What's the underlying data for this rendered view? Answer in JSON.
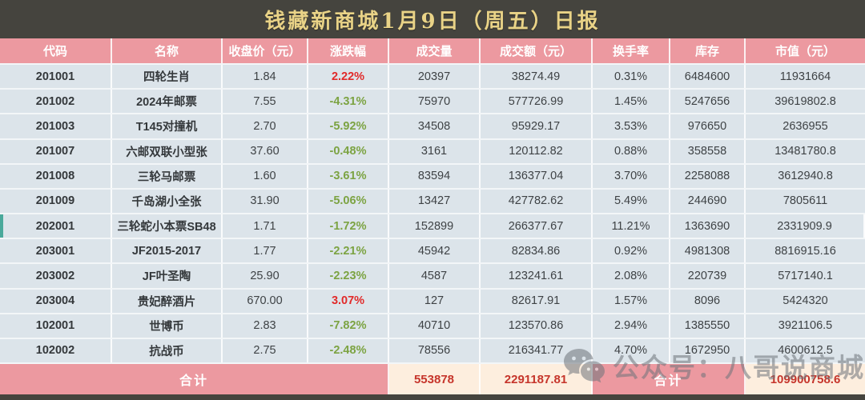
{
  "title": "钱藏新商城1月9日（周五）日报",
  "colors": {
    "title_gold": "#e9d387",
    "header_pink": "#ec99a0",
    "row_bg": "#dce4ea",
    "up_red": "#e12a2a",
    "down_green": "#7ca342",
    "footer_cream": "#fdeede",
    "footer_red": "#c6352b",
    "highlight_teal": "#4aa99b",
    "frame_dark": "#45443e"
  },
  "table": {
    "columns": [
      "代码",
      "名称",
      "收盘价（元）",
      "涨跌幅",
      "成交量",
      "成交额（元）",
      "换手率",
      "库存",
      "市值（元）"
    ],
    "rows": [
      {
        "code": "201001",
        "name": "四轮生肖",
        "close": "1.84",
        "change": "2.22%",
        "direction": "up",
        "volume": "20397",
        "turnover": "38274.49",
        "rate": "0.31%",
        "inventory": "6484600",
        "market_value": "11931664",
        "highlighted": false
      },
      {
        "code": "201002",
        "name": "2024年邮票",
        "close": "7.55",
        "change": "-4.31%",
        "direction": "down",
        "volume": "75970",
        "turnover": "577726.99",
        "rate": "1.45%",
        "inventory": "5247656",
        "market_value": "39619802.8",
        "highlighted": false
      },
      {
        "code": "201003",
        "name": "T145对撞机",
        "close": "2.70",
        "change": "-5.92%",
        "direction": "down",
        "volume": "34508",
        "turnover": "95929.17",
        "rate": "3.53%",
        "inventory": "976650",
        "market_value": "2636955",
        "highlighted": false
      },
      {
        "code": "201007",
        "name": "六邮双联小型张",
        "close": "37.60",
        "change": "-0.48%",
        "direction": "down",
        "volume": "3161",
        "turnover": "120112.82",
        "rate": "0.88%",
        "inventory": "358558",
        "market_value": "13481780.8",
        "highlighted": false
      },
      {
        "code": "201008",
        "name": "三轮马邮票",
        "close": "1.60",
        "change": "-3.61%",
        "direction": "down",
        "volume": "83594",
        "turnover": "136377.04",
        "rate": "3.70%",
        "inventory": "2258088",
        "market_value": "3612940.8",
        "highlighted": false
      },
      {
        "code": "201009",
        "name": "千岛湖小全张",
        "close": "31.90",
        "change": "-5.06%",
        "direction": "down",
        "volume": "13427",
        "turnover": "427782.62",
        "rate": "5.49%",
        "inventory": "244690",
        "market_value": "7805611",
        "highlighted": false
      },
      {
        "code": "202001",
        "name": "三轮蛇小本票SB48",
        "close": "1.71",
        "change": "-1.72%",
        "direction": "down",
        "volume": "152899",
        "turnover": "266377.67",
        "rate": "11.21%",
        "inventory": "1363690",
        "market_value": "2331909.9",
        "highlighted": true
      },
      {
        "code": "203001",
        "name": "JF2015-2017",
        "close": "1.77",
        "change": "-2.21%",
        "direction": "down",
        "volume": "45942",
        "turnover": "82834.86",
        "rate": "0.92%",
        "inventory": "4981308",
        "market_value": "8816915.16",
        "highlighted": false
      },
      {
        "code": "203002",
        "name": "JF叶圣陶",
        "close": "25.90",
        "change": "-2.23%",
        "direction": "down",
        "volume": "4587",
        "turnover": "123241.61",
        "rate": "2.08%",
        "inventory": "220739",
        "market_value": "5717140.1",
        "highlighted": false
      },
      {
        "code": "203004",
        "name": "贵妃醉酒片",
        "close": "670.00",
        "change": "3.07%",
        "direction": "up",
        "volume": "127",
        "turnover": "82617.91",
        "rate": "1.57%",
        "inventory": "8096",
        "market_value": "5424320",
        "highlighted": false
      },
      {
        "code": "102001",
        "name": "世博币",
        "close": "2.83",
        "change": "-7.82%",
        "direction": "down",
        "volume": "40710",
        "turnover": "123570.86",
        "rate": "2.94%",
        "inventory": "1385550",
        "market_value": "3921106.5",
        "highlighted": false
      },
      {
        "code": "102002",
        "name": "抗战币",
        "close": "2.75",
        "change": "-2.48%",
        "direction": "down",
        "volume": "78556",
        "turnover": "216341.77",
        "rate": "4.70%",
        "inventory": "1672950",
        "market_value": "4600612.5",
        "highlighted": false
      }
    ],
    "footer": {
      "total_label": "合计",
      "volume_total": "553878",
      "turnover_total": "2291187.81",
      "total_label_2": "合计",
      "market_value_total": "109900758.6"
    }
  },
  "watermark": {
    "icon": "wechat-icon",
    "text": "公众号：八哥说商城"
  },
  "chart_data": {
    "type": "table",
    "title": "钱藏新商城1月9日（周五）日报",
    "columns": [
      "代码",
      "名称",
      "收盘价（元）",
      "涨跌幅",
      "成交量",
      "成交额（元）",
      "换手率",
      "库存",
      "市值（元）"
    ],
    "rows": [
      [
        "201001",
        "四轮生肖",
        1.84,
        "2.22%",
        20397,
        38274.49,
        "0.31%",
        6484600,
        11931664
      ],
      [
        "201002",
        "2024年邮票",
        7.55,
        "-4.31%",
        75970,
        577726.99,
        "1.45%",
        5247656,
        39619802.8
      ],
      [
        "201003",
        "T145对撞机",
        2.7,
        "-5.92%",
        34508,
        95929.17,
        "3.53%",
        976650,
        2636955
      ],
      [
        "201007",
        "六邮双联小型张",
        37.6,
        "-0.48%",
        3161,
        120112.82,
        "0.88%",
        358558,
        13481780.8
      ],
      [
        "201008",
        "三轮马邮票",
        1.6,
        "-3.61%",
        83594,
        136377.04,
        "3.70%",
        2258088,
        3612940.8
      ],
      [
        "201009",
        "千岛湖小全张",
        31.9,
        "-5.06%",
        13427,
        427782.62,
        "5.49%",
        244690,
        7805611
      ],
      [
        "202001",
        "三轮蛇小本票SB48",
        1.71,
        "-1.72%",
        152899,
        266377.67,
        "11.21%",
        1363690,
        2331909.9
      ],
      [
        "203001",
        "JF2015-2017",
        1.77,
        "-2.21%",
        45942,
        82834.86,
        "0.92%",
        4981308,
        8816915.16
      ],
      [
        "203002",
        "JF叶圣陶",
        25.9,
        "-2.23%",
        4587,
        123241.61,
        "2.08%",
        220739,
        5717140.1
      ],
      [
        "203004",
        "贵妃醉酒片",
        670.0,
        "3.07%",
        127,
        82617.91,
        "1.57%",
        8096,
        5424320
      ],
      [
        "102001",
        "世博币",
        2.83,
        "-7.82%",
        40710,
        123570.86,
        "2.94%",
        1385550,
        3921106.5
      ],
      [
        "102002",
        "抗战币",
        2.75,
        "-2.48%",
        78556,
        216341.77,
        "4.70%",
        1672950,
        4600612.5
      ]
    ],
    "totals": {
      "成交量": 553878,
      "成交额（元）": 2291187.81,
      "市值（元）": 109900758.6
    }
  }
}
